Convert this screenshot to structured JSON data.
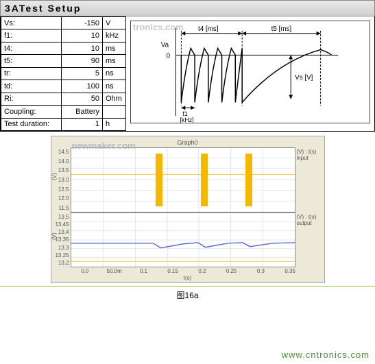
{
  "header": {
    "title": "3ATest Setup"
  },
  "watermark1": "tronics.com",
  "watermark2": "newmaker.com",
  "params": [
    {
      "label": "Vs:",
      "value": "-150",
      "unit": "V"
    },
    {
      "label": "f1:",
      "value": "10",
      "unit": "kHz"
    },
    {
      "label": "t4:",
      "value": "10",
      "unit": "ms"
    },
    {
      "label": "t5:",
      "value": "90",
      "unit": "ms"
    },
    {
      "label": "tr:",
      "value": "5",
      "unit": "ns"
    },
    {
      "label": "td:",
      "value": "100",
      "unit": "ns"
    },
    {
      "label": "Ri:",
      "value": "50",
      "unit": "Ohm"
    },
    {
      "label": "Coupling:",
      "value": "Battery",
      "unit": ""
    },
    {
      "label": "Test duration:",
      "value": "1",
      "unit": "h"
    }
  ],
  "waveform": {
    "labels": {
      "va": "Va",
      "zero": "0",
      "t4": "t4 [ms]",
      "t5": "t5 [ms]",
      "vs": "Vs [V]",
      "f1a": "f1",
      "f1b": "[kHz]"
    },
    "colors": {
      "stroke": "#000000",
      "arrow": "#000000",
      "text": "#000000"
    }
  },
  "graph": {
    "title": "Graph0",
    "bg_panel": "#ece9d8",
    "bg_plot": "#ffffff",
    "grid_color": "#e6e6e6",
    "input": {
      "side1": "(V) : t(s)",
      "side2": "input",
      "ylabel": "(V)",
      "yticks": [
        "14.5",
        "14.0",
        "13.5",
        "13.0",
        "12.5",
        "12.0",
        "11.5"
      ],
      "bar_color": "#f5b800",
      "bar_positions_pct": [
        38,
        58,
        78
      ],
      "flat_line_pct": 41,
      "flat_color": "#f5c84a"
    },
    "output": {
      "side1": "(V) : t(s)",
      "side2": "output",
      "ylabel": "(V)",
      "yticks": [
        "13.5",
        "13.45",
        "13.4",
        "13.35",
        "13.3",
        "13.25",
        "13.2"
      ],
      "trace_color": "#5060d0",
      "aux_color": "#f5c84a"
    },
    "xticks": [
      "0.0",
      "50.0m",
      "0.1",
      "0.15",
      "0.2",
      "0.25",
      "0.3",
      "0.35"
    ],
    "xlabel": "t(s)"
  },
  "caption": "图16a",
  "url": "www.cntronics.com"
}
